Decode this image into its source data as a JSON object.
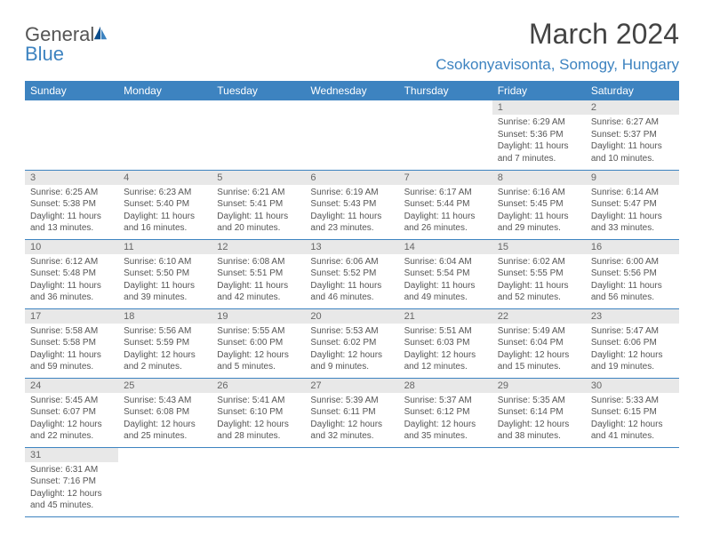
{
  "logo": {
    "text1": "General",
    "text2": "Blue"
  },
  "title": "March 2024",
  "location": "Csokonyavisonta, Somogy, Hungary",
  "colors": {
    "accent": "#3d83c0",
    "header_bg": "#3d83c0",
    "header_text": "#ffffff",
    "daynum_bg": "#e8e8e8",
    "text": "#555555",
    "border": "#3d83c0"
  },
  "typography": {
    "title_fontsize": 32,
    "location_fontsize": 17,
    "header_fontsize": 12,
    "daynum_fontsize": 11,
    "cell_fontsize": 10
  },
  "columns": [
    "Sunday",
    "Monday",
    "Tuesday",
    "Wednesday",
    "Thursday",
    "Friday",
    "Saturday"
  ],
  "weeks": [
    [
      null,
      null,
      null,
      null,
      null,
      {
        "d": "1",
        "sr": "6:29 AM",
        "ss": "5:36 PM",
        "dl": "11 hours and 7 minutes."
      },
      {
        "d": "2",
        "sr": "6:27 AM",
        "ss": "5:37 PM",
        "dl": "11 hours and 10 minutes."
      }
    ],
    [
      {
        "d": "3",
        "sr": "6:25 AM",
        "ss": "5:38 PM",
        "dl": "11 hours and 13 minutes."
      },
      {
        "d": "4",
        "sr": "6:23 AM",
        "ss": "5:40 PM",
        "dl": "11 hours and 16 minutes."
      },
      {
        "d": "5",
        "sr": "6:21 AM",
        "ss": "5:41 PM",
        "dl": "11 hours and 20 minutes."
      },
      {
        "d": "6",
        "sr": "6:19 AM",
        "ss": "5:43 PM",
        "dl": "11 hours and 23 minutes."
      },
      {
        "d": "7",
        "sr": "6:17 AM",
        "ss": "5:44 PM",
        "dl": "11 hours and 26 minutes."
      },
      {
        "d": "8",
        "sr": "6:16 AM",
        "ss": "5:45 PM",
        "dl": "11 hours and 29 minutes."
      },
      {
        "d": "9",
        "sr": "6:14 AM",
        "ss": "5:47 PM",
        "dl": "11 hours and 33 minutes."
      }
    ],
    [
      {
        "d": "10",
        "sr": "6:12 AM",
        "ss": "5:48 PM",
        "dl": "11 hours and 36 minutes."
      },
      {
        "d": "11",
        "sr": "6:10 AM",
        "ss": "5:50 PM",
        "dl": "11 hours and 39 minutes."
      },
      {
        "d": "12",
        "sr": "6:08 AM",
        "ss": "5:51 PM",
        "dl": "11 hours and 42 minutes."
      },
      {
        "d": "13",
        "sr": "6:06 AM",
        "ss": "5:52 PM",
        "dl": "11 hours and 46 minutes."
      },
      {
        "d": "14",
        "sr": "6:04 AM",
        "ss": "5:54 PM",
        "dl": "11 hours and 49 minutes."
      },
      {
        "d": "15",
        "sr": "6:02 AM",
        "ss": "5:55 PM",
        "dl": "11 hours and 52 minutes."
      },
      {
        "d": "16",
        "sr": "6:00 AM",
        "ss": "5:56 PM",
        "dl": "11 hours and 56 minutes."
      }
    ],
    [
      {
        "d": "17",
        "sr": "5:58 AM",
        "ss": "5:58 PM",
        "dl": "11 hours and 59 minutes."
      },
      {
        "d": "18",
        "sr": "5:56 AM",
        "ss": "5:59 PM",
        "dl": "12 hours and 2 minutes."
      },
      {
        "d": "19",
        "sr": "5:55 AM",
        "ss": "6:00 PM",
        "dl": "12 hours and 5 minutes."
      },
      {
        "d": "20",
        "sr": "5:53 AM",
        "ss": "6:02 PM",
        "dl": "12 hours and 9 minutes."
      },
      {
        "d": "21",
        "sr": "5:51 AM",
        "ss": "6:03 PM",
        "dl": "12 hours and 12 minutes."
      },
      {
        "d": "22",
        "sr": "5:49 AM",
        "ss": "6:04 PM",
        "dl": "12 hours and 15 minutes."
      },
      {
        "d": "23",
        "sr": "5:47 AM",
        "ss": "6:06 PM",
        "dl": "12 hours and 19 minutes."
      }
    ],
    [
      {
        "d": "24",
        "sr": "5:45 AM",
        "ss": "6:07 PM",
        "dl": "12 hours and 22 minutes."
      },
      {
        "d": "25",
        "sr": "5:43 AM",
        "ss": "6:08 PM",
        "dl": "12 hours and 25 minutes."
      },
      {
        "d": "26",
        "sr": "5:41 AM",
        "ss": "6:10 PM",
        "dl": "12 hours and 28 minutes."
      },
      {
        "d": "27",
        "sr": "5:39 AM",
        "ss": "6:11 PM",
        "dl": "12 hours and 32 minutes."
      },
      {
        "d": "28",
        "sr": "5:37 AM",
        "ss": "6:12 PM",
        "dl": "12 hours and 35 minutes."
      },
      {
        "d": "29",
        "sr": "5:35 AM",
        "ss": "6:14 PM",
        "dl": "12 hours and 38 minutes."
      },
      {
        "d": "30",
        "sr": "5:33 AM",
        "ss": "6:15 PM",
        "dl": "12 hours and 41 minutes."
      }
    ],
    [
      {
        "d": "31",
        "sr": "6:31 AM",
        "ss": "7:16 PM",
        "dl": "12 hours and 45 minutes."
      },
      null,
      null,
      null,
      null,
      null,
      null
    ]
  ],
  "labels": {
    "sunrise": "Sunrise:",
    "sunset": "Sunset:",
    "daylight": "Daylight:"
  }
}
